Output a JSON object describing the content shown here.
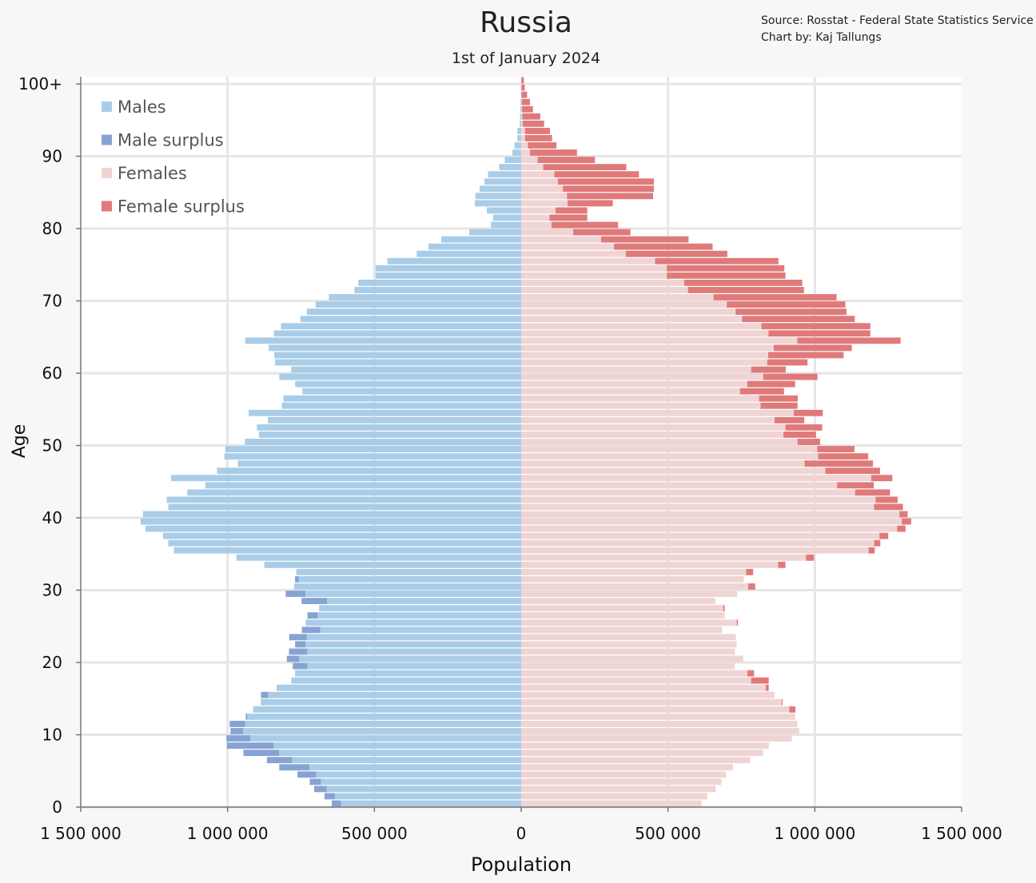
{
  "chart_data": {
    "type": "bar",
    "orientation": "horizontal",
    "subtype": "population-pyramid",
    "title": "Russia",
    "subtitle": "1st of January 2024",
    "source_lines": [
      "Source: Rosstat - Federal State Statistics Service",
      "Chart by: Kaj Tallungs"
    ],
    "xlabel": "Population",
    "ylabel": "Age",
    "x_ticks": [
      -1500000,
      -1000000,
      -500000,
      0,
      500000,
      1000000,
      1500000
    ],
    "x_tick_labels": [
      "1 500 000",
      "1 000 000",
      "500 000",
      "0",
      "500 000",
      "1 000 000",
      "1 500 000"
    ],
    "y_ticks": [
      0,
      10,
      20,
      30,
      40,
      50,
      60,
      70,
      80,
      90,
      100
    ],
    "y_tick_labels": [
      "0",
      "10",
      "20",
      "30",
      "40",
      "50",
      "60",
      "70",
      "80",
      "90",
      "100+"
    ],
    "xlim": [
      -1500000,
      1500000
    ],
    "ylim": [
      0,
      100
    ],
    "grid": true,
    "legend_position": "top-left",
    "legend": [
      {
        "label": "Males",
        "color": "#a9cde8"
      },
      {
        "label": "Male surplus",
        "color": "#87a3d4"
      },
      {
        "label": "Females",
        "color": "#f0d4d4"
      },
      {
        "label": "Female surplus",
        "color": "#e07a7a"
      }
    ],
    "ages": [
      0,
      1,
      2,
      3,
      4,
      5,
      6,
      7,
      8,
      9,
      10,
      11,
      12,
      13,
      14,
      15,
      16,
      17,
      18,
      19,
      20,
      21,
      22,
      23,
      24,
      25,
      26,
      27,
      28,
      29,
      30,
      31,
      32,
      33,
      34,
      35,
      36,
      37,
      38,
      39,
      40,
      41,
      42,
      43,
      44,
      45,
      46,
      47,
      48,
      49,
      50,
      51,
      52,
      53,
      54,
      55,
      56,
      57,
      58,
      59,
      60,
      61,
      62,
      63,
      64,
      65,
      66,
      67,
      68,
      69,
      70,
      71,
      72,
      73,
      74,
      75,
      76,
      77,
      78,
      79,
      80,
      81,
      82,
      83,
      84,
      85,
      86,
      87,
      88,
      89,
      90,
      91,
      92,
      93,
      94,
      95,
      96,
      97,
      98,
      99,
      100
    ],
    "series": [
      {
        "name": "Males",
        "values": [
          645000,
          670000,
          705000,
          720000,
          762000,
          824000,
          866000,
          946000,
          1002000,
          1004000,
          990000,
          993000,
          938000,
          913000,
          887000,
          886000,
          833000,
          783000,
          770000,
          778000,
          798000,
          791000,
          770000,
          790000,
          747000,
          734000,
          728000,
          688000,
          748000,
          802000,
          773000,
          770000,
          766000,
          875000,
          970000,
          1183000,
          1202000,
          1220000,
          1280000,
          1296000,
          1288000,
          1202000,
          1207000,
          1137000,
          1076000,
          1192000,
          1036000,
          965000,
          1011000,
          1008000,
          941000,
          893000,
          900000,
          863000,
          928000,
          815000,
          810000,
          745000,
          770000,
          824000,
          783000,
          838000,
          841000,
          860000,
          940000,
          842000,
          818000,
          752000,
          730000,
          700000,
          655000,
          568000,
          555000,
          496000,
          496000,
          456000,
          356000,
          316000,
          272000,
          177000,
          103000,
          96000,
          117000,
          158000,
          156000,
          142000,
          125000,
          113000,
          75000,
          56000,
          30000,
          23000,
          13000,
          13000,
          5000,
          4000,
          3000,
          2000,
          1000,
          1000,
          500
        ]
      },
      {
        "name": "Females",
        "values": [
          614000,
          634000,
          662000,
          682000,
          698000,
          721000,
          780000,
          824000,
          843000,
          922000,
          947000,
          940000,
          933000,
          934000,
          890000,
          862000,
          843000,
          843000,
          793000,
          728000,
          756000,
          728000,
          734000,
          731000,
          684000,
          738000,
          693000,
          693000,
          661000,
          735000,
          797000,
          758000,
          790000,
          900000,
          997000,
          1204000,
          1223000,
          1250000,
          1309000,
          1328000,
          1316000,
          1300000,
          1282000,
          1256000,
          1201000,
          1264000,
          1222000,
          1198000,
          1182000,
          1135000,
          1018000,
          1004000,
          1025000,
          964000,
          1027000,
          941000,
          942000,
          895000,
          933000,
          1009000,
          901000,
          975000,
          1098000,
          1126000,
          1292000,
          1189000,
          1189000,
          1136000,
          1108000,
          1104000,
          1074000,
          963000,
          957000,
          900000,
          896000,
          876000,
          702000,
          652000,
          570000,
          372000,
          330000,
          225000,
          225000,
          312000,
          449000,
          452000,
          452000,
          401000,
          358000,
          251000,
          190000,
          120000,
          105000,
          98000,
          78000,
          65000,
          40000,
          30000,
          20000,
          12000,
          9000
        ]
      }
    ]
  }
}
